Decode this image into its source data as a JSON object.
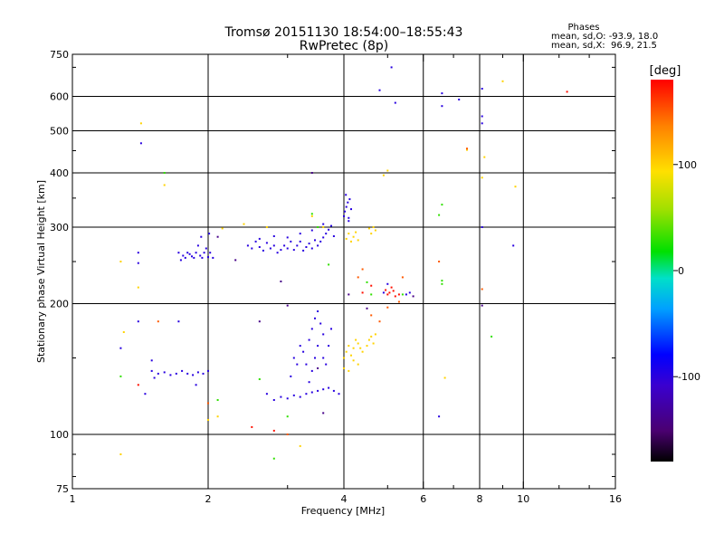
{
  "chart_data": {
    "type": "scatter",
    "title": "Tromsø 20151130 18:54:00–18:55:43",
    "subtitle": "RwPretec (8p)",
    "xlabel": "Frequency [MHz]",
    "ylabel": "Stationary phase Virtual Height [km]",
    "x_scale": "log",
    "y_scale": "log",
    "xlim": [
      1,
      16
    ],
    "ylim": [
      75,
      750
    ],
    "x_ticks": [
      1,
      2,
      4,
      6,
      8,
      10,
      16
    ],
    "x_tick_labels": [
      "1",
      "2",
      "4",
      "6",
      "8",
      "10",
      "16"
    ],
    "y_ticks": [
      75,
      100,
      200,
      300,
      400,
      500,
      600,
      750
    ],
    "y_tick_labels": [
      "75",
      "100",
      "200",
      "300",
      "400",
      "500",
      "600",
      "750"
    ],
    "x_gridlines": [
      2,
      4,
      6,
      8,
      10
    ],
    "y_gridlines": [
      100,
      200,
      300,
      400,
      500,
      600
    ],
    "stats": {
      "heading": "Phases",
      "line_o": "mean, sd,O: -93.9, 18.0",
      "line_x": "mean, sd,X:  96.9, 21.5"
    },
    "colorbar": {
      "label": "[deg]",
      "range": [
        -180,
        180
      ],
      "ticks": [
        100,
        0,
        -100
      ],
      "tick_labels": [
        "100",
        "0",
        "-100"
      ]
    },
    "colors": {
      "o_trace": "#1a1aff",
      "x_trace": "#f2c000",
      "cyan": "#00c8e0",
      "red": "#ff2000",
      "orange": "#ff8800",
      "purple": "#5010c0"
    },
    "series": [
      {
        "phase": -100,
        "points": [
          [
            1.72,
            262
          ],
          [
            1.74,
            252
          ],
          [
            1.76,
            258
          ],
          [
            1.78,
            255
          ],
          [
            1.8,
            262
          ],
          [
            1.82,
            260
          ],
          [
            1.84,
            257
          ],
          [
            1.86,
            255
          ],
          [
            1.88,
            262
          ],
          [
            1.9,
            272
          ],
          [
            1.92,
            258
          ],
          [
            1.94,
            255
          ],
          [
            1.96,
            262
          ],
          [
            1.98,
            268
          ],
          [
            2.0,
            256
          ],
          [
            2.02,
            262
          ],
          [
            2.05,
            255
          ],
          [
            1.93,
            285
          ],
          [
            2.01,
            290
          ],
          [
            2.45,
            272
          ],
          [
            2.5,
            268
          ],
          [
            2.55,
            278
          ],
          [
            2.6,
            270
          ],
          [
            2.65,
            265
          ],
          [
            2.7,
            276
          ],
          [
            2.75,
            268
          ],
          [
            2.8,
            272
          ],
          [
            2.85,
            262
          ],
          [
            2.9,
            266
          ],
          [
            2.95,
            272
          ],
          [
            3.0,
            268
          ],
          [
            3.05,
            278
          ],
          [
            3.1,
            266
          ],
          [
            3.15,
            272
          ],
          [
            3.2,
            278
          ],
          [
            3.25,
            265
          ],
          [
            3.3,
            270
          ],
          [
            3.35,
            275
          ],
          [
            3.4,
            268
          ],
          [
            3.45,
            280
          ],
          [
            3.5,
            272
          ],
          [
            3.55,
            278
          ],
          [
            3.6,
            284
          ],
          [
            3.65,
            290
          ],
          [
            3.7,
            296
          ],
          [
            3.75,
            302
          ],
          [
            3.8,
            286
          ],
          [
            2.6,
            282
          ],
          [
            2.8,
            286
          ],
          [
            3.0,
            284
          ],
          [
            3.2,
            290
          ],
          [
            3.4,
            295
          ],
          [
            3.6,
            305
          ],
          [
            4.0,
            318
          ],
          [
            4.02,
            326
          ],
          [
            4.05,
            334
          ],
          [
            4.08,
            342
          ],
          [
            4.1,
            315
          ],
          [
            4.12,
            348
          ],
          [
            4.15,
            330
          ],
          [
            4.04,
            356
          ],
          [
            4.1,
            310
          ],
          [
            1.5,
            140
          ],
          [
            1.55,
            138
          ],
          [
            1.6,
            139
          ],
          [
            1.65,
            137
          ],
          [
            1.7,
            138
          ],
          [
            1.75,
            140
          ],
          [
            1.8,
            138
          ],
          [
            1.85,
            137
          ],
          [
            1.9,
            139
          ],
          [
            1.95,
            138
          ],
          [
            2.0,
            140
          ],
          [
            1.52,
            135
          ],
          [
            1.88,
            130
          ],
          [
            1.72,
            182
          ],
          [
            2.7,
            124
          ],
          [
            2.8,
            120
          ],
          [
            2.9,
            122
          ],
          [
            3.0,
            121
          ],
          [
            3.1,
            123
          ],
          [
            3.2,
            122
          ],
          [
            3.3,
            124
          ],
          [
            3.4,
            125
          ],
          [
            3.5,
            126
          ],
          [
            3.6,
            127
          ],
          [
            3.7,
            128
          ],
          [
            3.8,
            126
          ],
          [
            3.9,
            124
          ],
          [
            3.05,
            136
          ],
          [
            3.15,
            145
          ],
          [
            3.25,
            155
          ],
          [
            3.35,
            165
          ],
          [
            3.4,
            175
          ],
          [
            3.45,
            185
          ],
          [
            3.5,
            192
          ],
          [
            3.55,
            180
          ],
          [
            3.6,
            170
          ],
          [
            3.5,
            160
          ],
          [
            3.45,
            150
          ],
          [
            3.4,
            140
          ],
          [
            3.35,
            132
          ],
          [
            3.6,
            150
          ],
          [
            3.7,
            160
          ],
          [
            3.75,
            175
          ],
          [
            3.65,
            145
          ],
          [
            3.2,
            160
          ],
          [
            3.1,
            150
          ],
          [
            3.3,
            145
          ],
          [
            1.28,
            158
          ],
          [
            1.4,
            182
          ],
          [
            1.5,
            148
          ],
          [
            1.45,
            124
          ],
          [
            1.4,
            262
          ],
          [
            1.4,
            248
          ],
          [
            1.42,
            468
          ],
          [
            4.8,
            620
          ],
          [
            5.1,
            700
          ],
          [
            5.2,
            580
          ],
          [
            6.6,
            610
          ],
          [
            6.6,
            570
          ],
          [
            7.2,
            590
          ],
          [
            8.1,
            625
          ],
          [
            8.1,
            540
          ],
          [
            8.1,
            520
          ],
          [
            9.5,
            272
          ],
          [
            8.1,
            300
          ],
          [
            6.5,
            110
          ],
          [
            5.6,
            212
          ],
          [
            5.5,
            210
          ],
          [
            5.0,
            222
          ],
          [
            4.9,
            212
          ]
        ]
      },
      {
        "phase": 100,
        "points": [
          [
            4.05,
            282
          ],
          [
            4.1,
            290
          ],
          [
            4.15,
            278
          ],
          [
            4.2,
            285
          ],
          [
            4.25,
            292
          ],
          [
            4.3,
            280
          ],
          [
            4.55,
            298
          ],
          [
            4.6,
            290
          ],
          [
            4.65,
            300
          ],
          [
            4.7,
            295
          ],
          [
            4.0,
            150
          ],
          [
            4.05,
            155
          ],
          [
            4.1,
            160
          ],
          [
            4.15,
            152
          ],
          [
            4.2,
            158
          ],
          [
            4.25,
            165
          ],
          [
            4.3,
            162
          ],
          [
            4.35,
            158
          ],
          [
            4.4,
            155
          ],
          [
            4.5,
            160
          ],
          [
            4.55,
            165
          ],
          [
            4.6,
            168
          ],
          [
            4.65,
            162
          ],
          [
            4.7,
            170
          ],
          [
            4.2,
            148
          ],
          [
            4.1,
            140
          ],
          [
            4.0,
            142
          ],
          [
            4.3,
            145
          ],
          [
            5.0,
            405
          ],
          [
            4.9,
            395
          ],
          [
            2.15,
            298
          ],
          [
            2.4,
            305
          ],
          [
            2.7,
            300
          ],
          [
            3.4,
            318
          ],
          [
            3.6,
            300
          ],
          [
            1.42,
            520
          ],
          [
            1.6,
            375
          ],
          [
            1.28,
            250
          ],
          [
            1.4,
            218
          ],
          [
            1.28,
            90
          ],
          [
            1.3,
            172
          ],
          [
            6.7,
            135
          ],
          [
            7.5,
            452
          ],
          [
            9.0,
            650
          ],
          [
            9.6,
            372
          ],
          [
            8.2,
            435
          ],
          [
            8.1,
            390
          ],
          [
            2.1,
            110
          ],
          [
            2.0,
            108
          ],
          [
            3.2,
            94
          ]
        ]
      },
      {
        "phase": 30,
        "points": [
          [
            1.28,
            136
          ],
          [
            3.4,
            322
          ],
          [
            3.5,
            300
          ],
          [
            3.7,
            246
          ],
          [
            4.5,
            224
          ],
          [
            4.6,
            210
          ],
          [
            5.4,
            210
          ],
          [
            6.5,
            320
          ],
          [
            6.6,
            226
          ],
          [
            6.6,
            222
          ],
          [
            8.5,
            168
          ],
          [
            6.6,
            338
          ],
          [
            2.8,
            88
          ],
          [
            2.6,
            134
          ],
          [
            3.0,
            110
          ],
          [
            1.6,
            400
          ],
          [
            2.1,
            120
          ]
        ]
      },
      {
        "phase": 175,
        "points": [
          [
            4.95,
            215
          ],
          [
            5.0,
            210
          ],
          [
            5.05,
            212
          ],
          [
            5.1,
            218
          ],
          [
            5.15,
            214
          ],
          [
            5.2,
            208
          ],
          [
            5.3,
            210
          ],
          [
            4.6,
            220
          ],
          [
            12.5,
            615
          ],
          [
            2.5,
            104
          ],
          [
            2.8,
            102
          ],
          [
            1.4,
            130
          ],
          [
            4.4,
            212
          ]
        ]
      },
      {
        "phase": 150,
        "points": [
          [
            4.3,
            230
          ],
          [
            4.4,
            240
          ],
          [
            5.4,
            230
          ],
          [
            6.5,
            250
          ],
          [
            8.1,
            216
          ],
          [
            7.5,
            455
          ],
          [
            1.55,
            182
          ],
          [
            2.0,
            118
          ],
          [
            4.6,
            188
          ],
          [
            5.0,
            196
          ],
          [
            5.3,
            202
          ],
          [
            4.8,
            182
          ],
          [
            3.0,
            100
          ]
        ]
      },
      {
        "phase": -140,
        "points": [
          [
            2.6,
            182
          ],
          [
            2.9,
            225
          ],
          [
            3.0,
            198
          ],
          [
            3.5,
            142
          ],
          [
            3.6,
            112
          ],
          [
            4.1,
            210
          ],
          [
            4.5,
            195
          ],
          [
            2.1,
            285
          ],
          [
            3.4,
            400
          ],
          [
            8.1,
            198
          ],
          [
            2.3,
            252
          ],
          [
            5.7,
            208
          ]
        ]
      }
    ]
  }
}
